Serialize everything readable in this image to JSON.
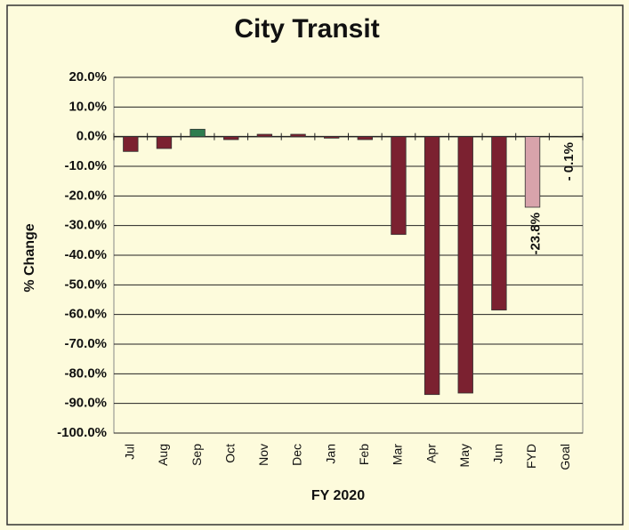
{
  "chart_data": {
    "type": "bar",
    "title": "City Transit",
    "x_label": "FY 2020",
    "y_label": "% Change",
    "categories": [
      "Jul",
      "Aug",
      "Sep",
      "Oct",
      "Nov",
      "Dec",
      "Jan",
      "Feb",
      "Mar",
      "Apr",
      "May",
      "Jun",
      "FYD",
      "Goal"
    ],
    "values": [
      -5.0,
      -4.0,
      2.5,
      -1.0,
      0.8,
      0.8,
      -0.5,
      -1.0,
      -33.0,
      -87.0,
      -86.5,
      -58.5,
      -23.8,
      -0.1
    ],
    "value_labels": [
      null,
      null,
      null,
      null,
      null,
      null,
      null,
      null,
      null,
      null,
      null,
      null,
      "-23.8%",
      "- 0.1%"
    ],
    "colors": [
      "#7b2130",
      "#7b2130",
      "#2e7d4f",
      "#7b2130",
      "#7b2130",
      "#7b2130",
      "#7b2130",
      "#7b2130",
      "#7b2130",
      "#7b2130",
      "#7b2130",
      "#7b2130",
      "#d8a3ab",
      "#7b2130"
    ],
    "ylim": [
      -100,
      20
    ],
    "yticks": [
      {
        "value": 20,
        "label": "20.0%"
      },
      {
        "value": 10,
        "label": "10.0%"
      },
      {
        "value": 0,
        "label": "0.0%"
      },
      {
        "value": -10,
        "label": "-10.0%"
      },
      {
        "value": -20,
        "label": "-20.0%"
      },
      {
        "value": -30,
        "label": "-30.0%"
      },
      {
        "value": -40,
        "label": "-40.0%"
      },
      {
        "value": -50,
        "label": "-50.0%"
      },
      {
        "value": -60,
        "label": "-60.0%"
      },
      {
        "value": -70,
        "label": "-70.0%"
      },
      {
        "value": -80,
        "label": "-80.0%"
      },
      {
        "value": -90,
        "label": "-90.0%"
      },
      {
        "value": -100,
        "label": "-100.0%"
      }
    ],
    "grid": true
  }
}
